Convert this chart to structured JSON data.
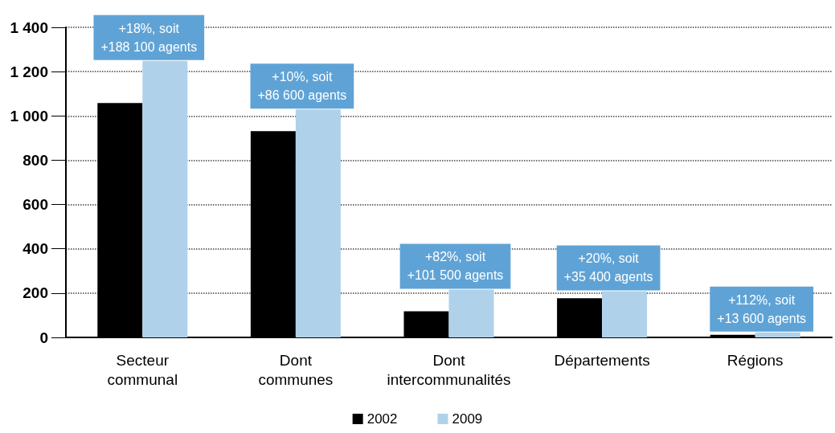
{
  "chart_data": {
    "type": "bar",
    "categories": [
      "Secteur\ncommunal",
      "Dont\ncommunes",
      "Dont\nintercommunalités",
      "Départements",
      "Régions"
    ],
    "series": [
      {
        "name": "2002",
        "color": "#000000",
        "values": [
          1058,
          931,
          118,
          177,
          12
        ]
      },
      {
        "name": "2009",
        "color": "#afd2ea",
        "values": [
          1249,
          1029,
          216,
          209,
          23
        ]
      }
    ],
    "ylim": [
      0,
      1400
    ],
    "yticks": [
      0,
      200,
      400,
      600,
      800,
      {
        "value": 1000,
        "label": "1 000"
      },
      {
        "value": 1200,
        "label": "1 200"
      },
      {
        "value": 1400,
        "label": "1 400"
      }
    ],
    "grid": "y",
    "legend": "bottom",
    "annotations": [
      {
        "text": "+18%, soit\n+188 100 agents",
        "x": "Secteur\ncommunal",
        "y": 1249
      },
      {
        "text": "+10%, soit\n+86 600 agents",
        "x": "Dont\ncommunes",
        "y": 1029
      },
      {
        "text": "+82%, soit\n+101 500 agents",
        "x": "Dont\nintercommunalités",
        "y": 216
      },
      {
        "text": "+20%, soit\n+35 400 agents",
        "x": "Départements",
        "y": 209
      },
      {
        "text": "+112%, soit\n+13 600 agents",
        "x": "Régions",
        "y": 23
      }
    ]
  }
}
